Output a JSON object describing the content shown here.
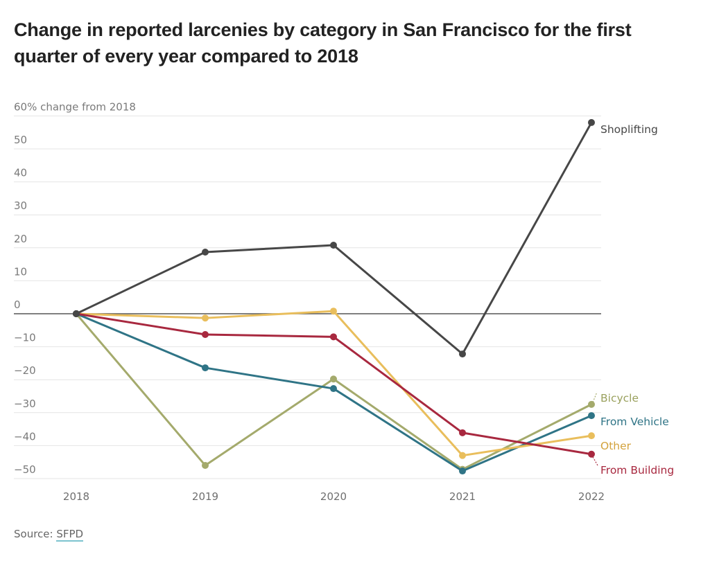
{
  "chart_data": {
    "type": "line",
    "title": "Change in reported larcenies by category in San Francisco for the first quarter of every year compared to 2018",
    "xlabel": "",
    "ylabel": "% change from 2018",
    "x": [
      "2018",
      "2019",
      "2020",
      "2021",
      "2022"
    ],
    "ylim": [
      -50,
      60
    ],
    "yticks": [
      60,
      50,
      40,
      30,
      20,
      10,
      0,
      -10,
      -20,
      -30,
      -40,
      -50
    ],
    "ytick_labels": [
      "60% change from 2018",
      "50",
      "40",
      "30",
      "20",
      "10",
      "0",
      "−10",
      "−20",
      "−30",
      "−40",
      "−50"
    ],
    "grid": true,
    "legend": "direct-labels-right",
    "series": [
      {
        "name": "Shoplifting",
        "color": "#474747",
        "label_color": "#474747",
        "values": [
          0,
          18.7,
          20.8,
          -12.2,
          58
        ]
      },
      {
        "name": "Bicycle",
        "color": "#a4aa6c",
        "label_color": "#9aa15e",
        "values": [
          0,
          -46,
          -19.8,
          -47.2,
          -27.5
        ]
      },
      {
        "name": "From Vehicle",
        "color": "#2f7486",
        "label_color": "#2f7486",
        "values": [
          0,
          -16.4,
          -22.7,
          -47.7,
          -30.9
        ]
      },
      {
        "name": "Other",
        "color": "#e9be5c",
        "label_color": "#d3a23c",
        "values": [
          0,
          -1.3,
          0.8,
          -43,
          -37
        ]
      },
      {
        "name": "From Building",
        "color": "#a8283f",
        "label_color": "#a8283f",
        "values": [
          0,
          -6.3,
          -7,
          -36.1,
          -42.6
        ]
      }
    ]
  },
  "source": {
    "prefix": "Source: ",
    "link": "SFPD"
  }
}
